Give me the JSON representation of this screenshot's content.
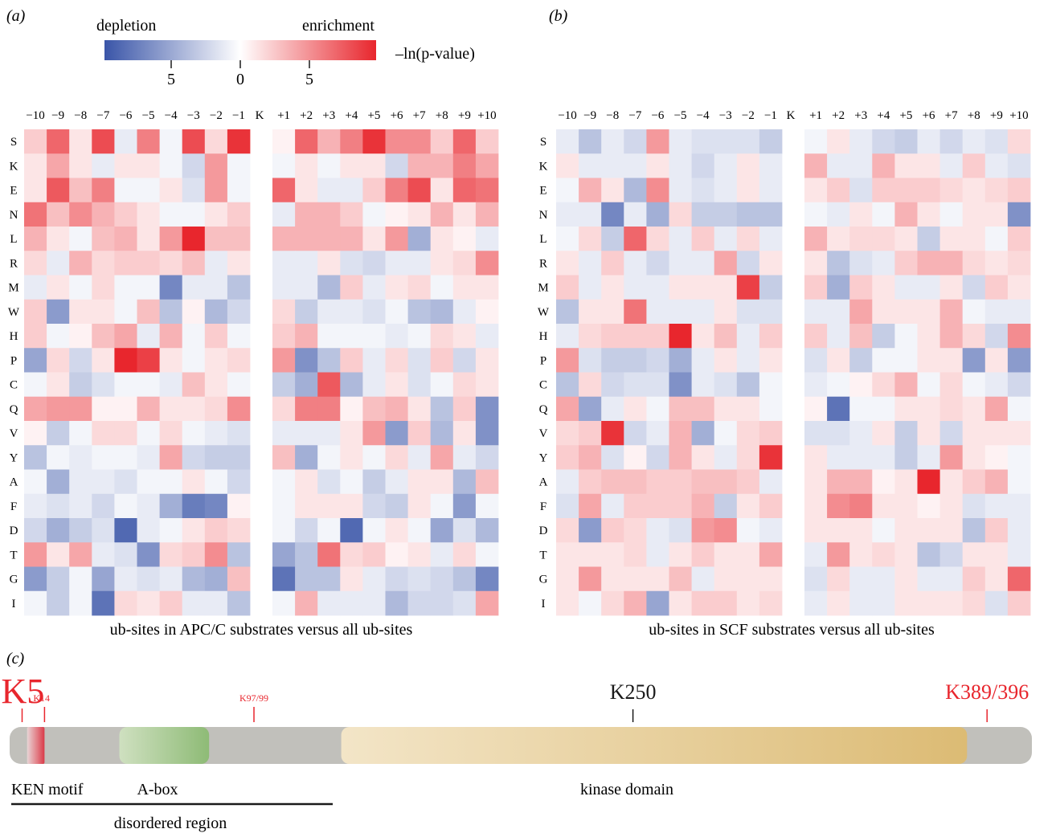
{
  "panel_labels": {
    "a": "(a)",
    "b": "(b)",
    "c": "(c)"
  },
  "legend": {
    "depletion_label": "depletion",
    "enrichment_label": "enrichment",
    "metric_label": "–ln(p-value)",
    "ticks": [
      "5",
      "0",
      "5"
    ],
    "colors": {
      "depletion": "#3a55a8",
      "neutral": "#ffffff",
      "enrichment": "#e8262d"
    },
    "range": [
      -8.5,
      8.5
    ]
  },
  "heatmap_colors": {
    "depletion": "#3a55a8",
    "neutral": "#ffffff",
    "enrichment": "#e8262d"
  },
  "chart_data": [
    {
      "type": "heatmap",
      "title": "ub-sites in APC/C substrates versus all ub-sites",
      "x_left": [
        "−10",
        "−9",
        "−8",
        "−7",
        "−6",
        "−5",
        "−4",
        "−3",
        "−2",
        "−1"
      ],
      "center_label": "K",
      "x_right": [
        "+1",
        "+2",
        "+3",
        "+4",
        "+5",
        "+6",
        "+7",
        "+8",
        "+9",
        "+10"
      ],
      "rows": [
        "S",
        "K",
        "E",
        "N",
        "L",
        "R",
        "M",
        "W",
        "H",
        "P",
        "C",
        "Q",
        "V",
        "Y",
        "A",
        "F",
        "D",
        "T",
        "G",
        "I"
      ],
      "values": [
        [
          2,
          6,
          1,
          7,
          -1,
          5,
          -0.5,
          7,
          1.5,
          8,
          0.5,
          6,
          3,
          5,
          8,
          4.5,
          4.5,
          2,
          6,
          2
        ],
        [
          1,
          3.5,
          1,
          -1,
          1,
          1,
          -0.5,
          -2,
          4,
          -0.5,
          -0.5,
          1,
          -0.5,
          1,
          1,
          -2,
          3,
          3,
          5,
          3.5
        ],
        [
          1,
          6.5,
          2.5,
          5,
          -0.5,
          -0.5,
          1,
          -1.5,
          4,
          -0.5,
          6,
          1,
          -1,
          -1,
          2,
          5,
          7,
          1,
          6,
          5.5
        ],
        [
          5.5,
          2.5,
          4.5,
          3,
          2,
          1,
          -0.5,
          -0.5,
          1,
          2,
          -1,
          3,
          3,
          2,
          -0.5,
          0.5,
          1,
          3,
          1,
          3
        ],
        [
          3,
          1,
          -0.5,
          2.5,
          3,
          1,
          4,
          8.5,
          2.5,
          2.5,
          3,
          3,
          3,
          3,
          1,
          4,
          -4,
          1,
          0.5,
          -1
        ],
        [
          1.5,
          -1,
          3,
          1.5,
          2,
          2,
          1.5,
          2.5,
          -1,
          1,
          -1,
          -1,
          1,
          -1.5,
          -2,
          -1,
          -1,
          1,
          1.5,
          4.5
        ],
        [
          -1,
          1,
          -0.5,
          1.5,
          -0.5,
          -0.5,
          -6,
          -1,
          -1,
          -3,
          -1,
          -1,
          -3.5,
          2,
          -1,
          1,
          1.5,
          -0.5,
          1,
          1
        ],
        [
          2,
          -5,
          1,
          1,
          -0.5,
          2.5,
          -3,
          0.5,
          -3.5,
          -2,
          1.5,
          -2.5,
          -1,
          -1,
          -1.5,
          -0.5,
          -3,
          -3.5,
          -1,
          0.5
        ],
        [
          2,
          -0.5,
          0.5,
          2.5,
          3.5,
          -1,
          3,
          -0.5,
          2,
          -0.5,
          2,
          3,
          -0.5,
          -0.5,
          -0.5,
          -1,
          -0.5,
          1.5,
          1,
          -1
        ],
        [
          -4.5,
          1.5,
          -2,
          1,
          8.5,
          7.5,
          1,
          -0.5,
          1,
          1.5,
          4,
          -5.5,
          -3,
          2,
          -1,
          1.5,
          -1.5,
          2,
          -2,
          1
        ],
        [
          -0.5,
          1,
          -2.5,
          -1.5,
          -0.5,
          -0.5,
          -1,
          2.5,
          1,
          -0.5,
          -2.5,
          -4,
          6.5,
          -3.5,
          -1,
          1,
          -1.5,
          -0.5,
          1.5,
          1
        ],
        [
          3.5,
          4,
          4,
          0.5,
          0.5,
          3,
          1,
          1,
          1.5,
          4.5,
          1.5,
          5,
          5,
          0.5,
          2.5,
          3,
          1,
          -3,
          2,
          -5.5
        ],
        [
          0.5,
          -2.5,
          -0.5,
          1.5,
          1.5,
          -0.5,
          1.5,
          -0.5,
          -1,
          -1.5,
          -1,
          -1,
          -1,
          1,
          4,
          -5,
          2,
          -3.5,
          1,
          -5.5
        ],
        [
          -3,
          -0.5,
          -1,
          -0.5,
          -0.5,
          -1,
          3.5,
          -2,
          -2.5,
          -2.5,
          2.5,
          -4,
          -0.5,
          1,
          -0.5,
          1.5,
          -1,
          3.5,
          -1,
          -2
        ],
        [
          -0.5,
          -4,
          -1,
          -1,
          -1.5,
          -0.5,
          -0.5,
          1,
          -0.5,
          -2,
          -0.5,
          1,
          -1.5,
          -0.5,
          -2.5,
          -1,
          1,
          1,
          -3.5,
          2.5
        ],
        [
          -1,
          -1.5,
          -1,
          -2,
          -0.5,
          -1,
          -4,
          -6.5,
          -6,
          0.5,
          -0.5,
          1,
          1,
          1,
          -2,
          -2.5,
          1,
          -0.5,
          -5,
          -0.5
        ],
        [
          -2,
          -4,
          -2.5,
          -1.5,
          -7.5,
          -1,
          -0.5,
          1,
          2,
          1.5,
          -0.5,
          -2,
          -0.5,
          -7.5,
          -0.5,
          1,
          -0.5,
          -4.5,
          -1.5,
          -3.5
        ],
        [
          4,
          1,
          3.5,
          -1,
          -1.5,
          -5.5,
          1.5,
          2,
          4.5,
          -3,
          -4.5,
          -3,
          5.5,
          1.5,
          2,
          0.5,
          1,
          -1,
          1.5,
          -0.5
        ],
        [
          -5,
          -2.5,
          -0.5,
          -4.5,
          -1,
          -1.5,
          -1,
          -3.5,
          -4,
          2.5,
          -7,
          -3,
          -3,
          1,
          -1,
          -2,
          -1.5,
          -2,
          -3,
          -6
        ],
        [
          -0.5,
          -2.5,
          -0.5,
          -7,
          1.5,
          1,
          2,
          -1,
          -1,
          -3,
          -0.5,
          3,
          -1,
          -1,
          -1,
          -3.5,
          -2,
          -2,
          -1.5,
          3.5
        ]
      ]
    },
    {
      "type": "heatmap",
      "title": "ub-sites in SCF substrates versus all ub-sites",
      "x_left": [
        "−10",
        "−9",
        "−8",
        "−7",
        "−6",
        "−5",
        "−4",
        "−3",
        "−2",
        "−1"
      ],
      "center_label": "K",
      "x_right": [
        "+1",
        "+2",
        "+3",
        "+4",
        "+5",
        "+6",
        "+7",
        "+8",
        "+9",
        "+10"
      ],
      "rows": [
        "S",
        "K",
        "E",
        "N",
        "L",
        "R",
        "M",
        "W",
        "H",
        "P",
        "C",
        "Q",
        "V",
        "Y",
        "A",
        "F",
        "D",
        "T",
        "G",
        "I"
      ],
      "values": [
        [
          -1,
          -3,
          -1,
          -2,
          4,
          -1,
          -1.5,
          -1.5,
          -1.5,
          -2.5,
          -0.5,
          1,
          -1,
          -2,
          -2.5,
          -1,
          -2,
          -1,
          -1.5,
          1.5
        ],
        [
          1,
          -1,
          -1,
          -1,
          1,
          -1,
          -2,
          -1,
          1,
          -1,
          3,
          -1,
          -1,
          3,
          1,
          1,
          -1,
          2,
          -1,
          -1.5
        ],
        [
          -0.5,
          3,
          1,
          -3.5,
          4.5,
          -1,
          -1.5,
          -1,
          1,
          -1,
          1,
          2,
          -1.5,
          2,
          2,
          2,
          1.5,
          1,
          1.5,
          2
        ],
        [
          -1,
          -1,
          -6,
          -1,
          -4,
          1.5,
          -2.5,
          -2.5,
          -3,
          -3,
          -0.5,
          -1,
          1,
          -0.5,
          3,
          1,
          -0.5,
          1,
          1,
          -5.5
        ],
        [
          -0.5,
          1.5,
          -2.5,
          6,
          1.5,
          -1,
          2,
          -1,
          1.5,
          -1,
          3,
          1,
          1.5,
          1.5,
          1,
          -2.5,
          1,
          1,
          -0.5,
          2
        ],
        [
          1,
          -1,
          2,
          -1,
          -2,
          -1,
          -1,
          3.5,
          -2,
          1,
          1,
          -3,
          -1.5,
          -1,
          2,
          3,
          3,
          1.5,
          1,
          1.5
        ],
        [
          2,
          -1,
          1,
          -1,
          -1,
          1,
          1,
          1,
          7.5,
          -2.5,
          2,
          -4,
          2,
          1,
          -1,
          -1,
          1,
          -2,
          2,
          1
        ],
        [
          -3,
          1,
          1,
          5.5,
          -1,
          -1,
          -1,
          1,
          -1.5,
          -1.5,
          -1,
          -1,
          3.5,
          1,
          1,
          1,
          3,
          -0.5,
          -1,
          -1
        ],
        [
          -1,
          1.5,
          2,
          2,
          2,
          8.5,
          1,
          2.5,
          -1,
          2,
          2,
          -1,
          2.5,
          -2.5,
          -0.5,
          1,
          3,
          1.5,
          -2,
          4.5
        ],
        [
          4,
          -1.5,
          -2.5,
          -2.5,
          -2,
          -4,
          -1,
          1,
          -1,
          1,
          -1.5,
          1,
          -2.5,
          -0.5,
          -0.5,
          1,
          1,
          -5,
          1,
          -5
        ],
        [
          -3,
          1.5,
          -2,
          -1.5,
          -1.5,
          -5.5,
          -1,
          -1.5,
          -3,
          -0.5,
          -1,
          -0.5,
          0.5,
          1.5,
          3,
          -0.5,
          1.5,
          -0.5,
          -1,
          -2
        ],
        [
          3.5,
          -4.5,
          -1,
          1,
          -0.5,
          2.5,
          2.5,
          1,
          1,
          -0.5,
          0.5,
          -7,
          -0.5,
          -0.5,
          1,
          1,
          1.5,
          1,
          3.5,
          -0.5
        ],
        [
          1.5,
          2,
          8,
          -2,
          -1,
          3,
          -4,
          -0.5,
          1.5,
          2,
          -1.5,
          -1.5,
          -1,
          1,
          -2.5,
          1,
          -2,
          1,
          1,
          1
        ],
        [
          2,
          3,
          -1.5,
          0.5,
          -2,
          3,
          1,
          -1,
          1.5,
          8,
          1,
          -1,
          -1,
          -1,
          -2.5,
          -1,
          4,
          1,
          0.5,
          -0.5
        ],
        [
          -1,
          2,
          2.5,
          2.5,
          2,
          2,
          2.5,
          2.5,
          2,
          -1,
          1,
          3,
          3,
          0.5,
          1,
          8.5,
          1,
          2,
          3,
          -0.5
        ],
        [
          -1.5,
          3.5,
          -1,
          2,
          2,
          2,
          3,
          -2.5,
          1,
          2,
          1,
          4.5,
          5,
          1,
          1,
          0.5,
          1,
          -1.5,
          -1,
          -1
        ],
        [
          1.5,
          -5,
          2,
          1.5,
          -1,
          -1.5,
          4,
          4.5,
          -0.5,
          -1,
          1,
          1,
          1,
          -0.5,
          1,
          1,
          1,
          -3,
          2,
          -1
        ],
        [
          1,
          1,
          1,
          1.5,
          -1,
          1,
          2,
          1,
          1,
          3.5,
          -1,
          4,
          1,
          1.5,
          1,
          -3,
          -2,
          1,
          1,
          -1
        ],
        [
          1,
          4,
          1,
          1,
          1,
          2.5,
          -1,
          1,
          1,
          1,
          -1.5,
          1.5,
          -1,
          -1,
          1,
          -1,
          -1,
          2,
          1,
          6
        ],
        [
          1,
          -0.5,
          1.5,
          3,
          -4.5,
          1,
          2,
          2,
          1,
          1.5,
          -1,
          1,
          -1,
          -1,
          1,
          1,
          1,
          1.5,
          -1.5,
          2
        ]
      ]
    },
    {
      "type": "diagram",
      "protein_length": 410,
      "sites": [
        {
          "label": "K5",
          "position": 5,
          "color": "#e8262d",
          "emphasis": "large"
        },
        {
          "label": "K14",
          "position": 14,
          "color": "#e8262d",
          "emphasis": "small"
        },
        {
          "label": "K97/99",
          "position": 98,
          "color": "#e8262d",
          "emphasis": "small"
        },
        {
          "label": "K250",
          "position": 250,
          "color": "#1a1a1a",
          "emphasis": "medium"
        },
        {
          "label": "K389/396",
          "position": 392,
          "color": "#e8262d",
          "emphasis": "medium"
        }
      ],
      "domains": [
        {
          "label": "KEN motif",
          "start": 7,
          "end": 14,
          "color": "#d97f86"
        },
        {
          "label": "A-box",
          "start": 44,
          "end": 80,
          "color": "#96c17e"
        },
        {
          "label": "kinase domain",
          "start": 133,
          "end": 384,
          "color": "#dcbd78"
        }
      ],
      "regions": [
        {
          "label": "disordered region",
          "start": 1,
          "end": 130
        }
      ],
      "backbone_color": "#c1c0bb"
    }
  ]
}
